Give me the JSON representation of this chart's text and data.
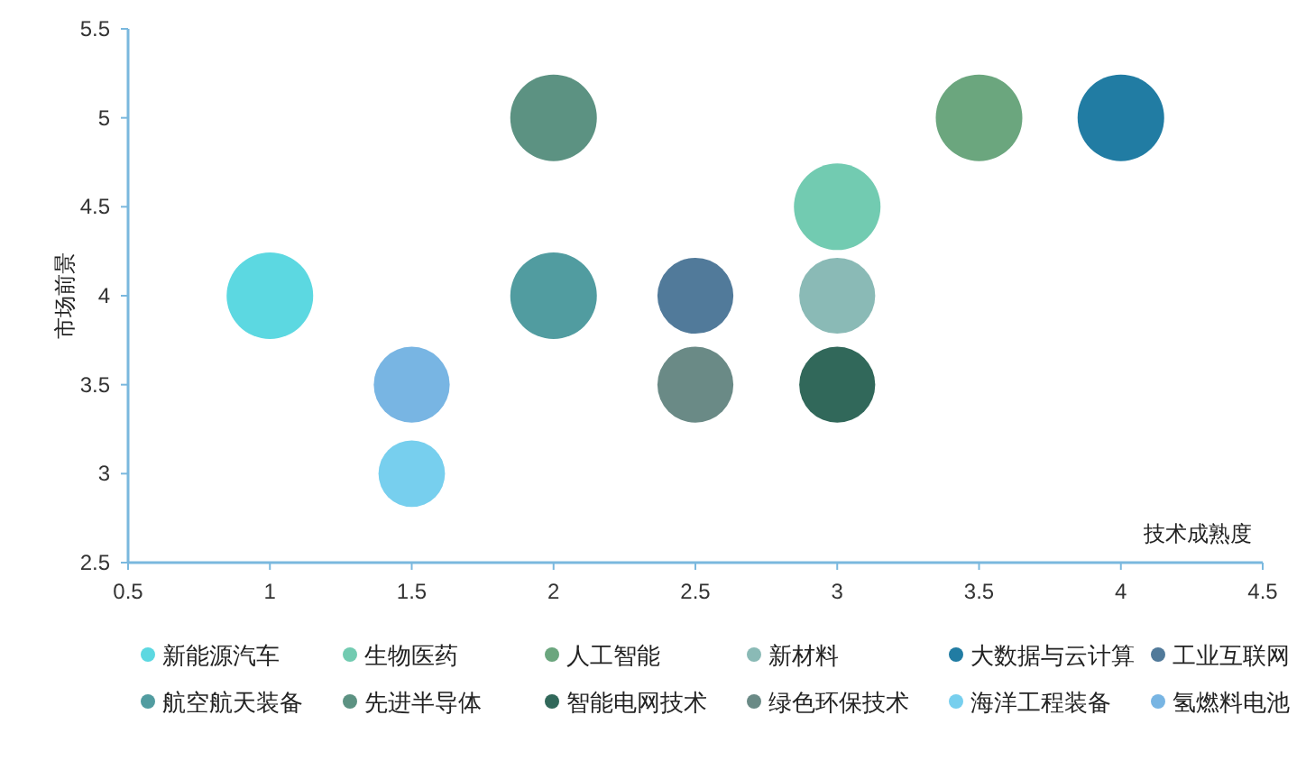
{
  "chart_data": {
    "type": "bubble",
    "xlabel": "技术成熟度",
    "ylabel": "市场前景",
    "xlim": [
      0.5,
      4.5
    ],
    "xticks": [
      0.5,
      1,
      1.5,
      2,
      2.5,
      3,
      3.5,
      4,
      4.5
    ],
    "ylim": [
      2.5,
      5.5
    ],
    "yticks": [
      2.5,
      3,
      3.5,
      4,
      4.5,
      5,
      5.5
    ],
    "grid": false,
    "legend": "bottom",
    "series": [
      {
        "name": "新能源汽车",
        "color": "#5cd8e1",
        "x": [
          1
        ],
        "values": [
          4
        ],
        "sizes": [
          1
        ]
      },
      {
        "name": "生物医药",
        "color": "#72cbb1",
        "x": [
          3
        ],
        "values": [
          4.5
        ],
        "sizes": [
          1
        ]
      },
      {
        "name": "人工智能",
        "color": "#6ba67e",
        "x": [
          3.5
        ],
        "values": [
          5
        ],
        "sizes": [
          1
        ]
      },
      {
        "name": "新材料",
        "color": "#8abab6",
        "x": [
          3
        ],
        "values": [
          4
        ],
        "sizes": [
          0.77
        ]
      },
      {
        "name": "大数据与云计算",
        "color": "#217ca3",
        "x": [
          4
        ],
        "values": [
          5
        ],
        "sizes": [
          1
        ]
      },
      {
        "name": "工业互联网",
        "color": "#517a9a",
        "x": [
          2.5
        ],
        "values": [
          4
        ],
        "sizes": [
          0.77
        ]
      },
      {
        "name": "航空航天装备",
        "color": "#519ca0",
        "x": [
          2
        ],
        "values": [
          4
        ],
        "sizes": [
          1
        ]
      },
      {
        "name": "先进半导体",
        "color": "#5c9282",
        "x": [
          2
        ],
        "values": [
          5
        ],
        "sizes": [
          1
        ]
      },
      {
        "name": "智能电网技术",
        "color": "#31685a",
        "x": [
          3
        ],
        "values": [
          3.5
        ],
        "sizes": [
          0.77
        ]
      },
      {
        "name": "绿色环保技术",
        "color": "#6a8a86",
        "x": [
          2.5
        ],
        "values": [
          3.5
        ],
        "sizes": [
          0.77
        ]
      },
      {
        "name": "海洋工程装备",
        "color": "#77cfee",
        "x": [
          1.5
        ],
        "values": [
          3
        ],
        "sizes": [
          0.59
        ]
      },
      {
        "name": "氢燃料电池",
        "color": "#78b5e3",
        "x": [
          1.5
        ],
        "values": [
          3.5
        ],
        "sizes": [
          0.77
        ]
      }
    ]
  }
}
